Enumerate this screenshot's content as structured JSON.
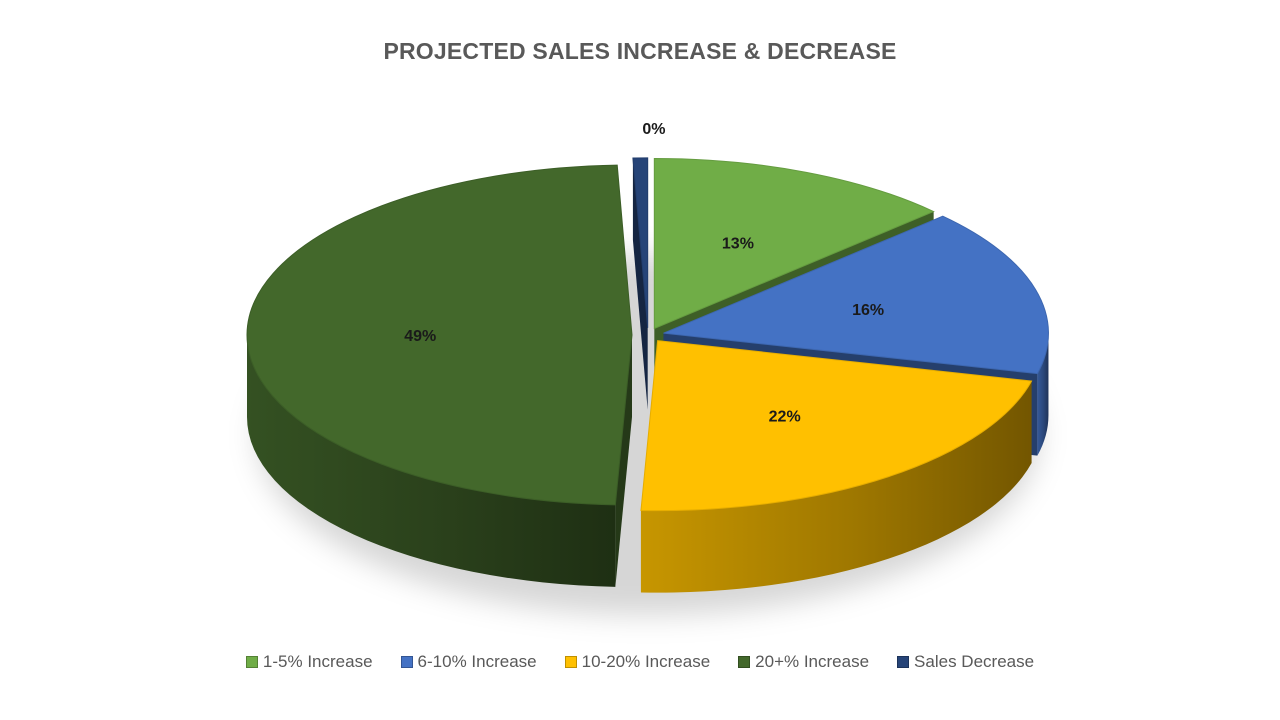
{
  "chart_data": {
    "type": "pie",
    "title": "PROJECTED SALES INCREASE & DECREASE",
    "categories": [
      "1-5% Increase",
      "6-10% Increase",
      "10-20% Increase",
      "20+% Increase",
      "Sales Decrease"
    ],
    "values": [
      13,
      16,
      22,
      49,
      0
    ],
    "data_labels": [
      "13%",
      "16%",
      "22%",
      "49%",
      "0%"
    ],
    "colors": [
      "#70ad47",
      "#4472c4",
      "#ffc000",
      "#43682b",
      "#264478"
    ],
    "legend_position": "bottom",
    "style": "3d-exploded"
  }
}
